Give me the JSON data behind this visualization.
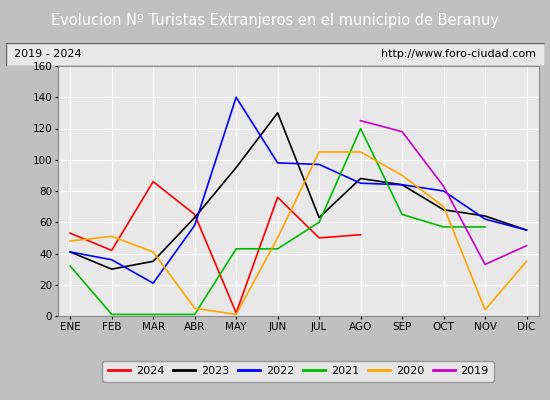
{
  "title": "Evolucion Nº Turistas Extranjeros en el municipio de Beranuy",
  "subtitle_left": "2019 - 2024",
  "subtitle_right": "http://www.foro-ciudad.com",
  "months": [
    "ENE",
    "FEB",
    "MAR",
    "ABR",
    "MAY",
    "JUN",
    "JUL",
    "AGO",
    "SEP",
    "OCT",
    "NOV",
    "DIC"
  ],
  "ylim": [
    0,
    160
  ],
  "yticks": [
    0,
    20,
    40,
    60,
    80,
    100,
    120,
    140,
    160
  ],
  "series": {
    "2024": {
      "color": "#ff0000",
      "values": [
        53,
        42,
        86,
        65,
        2,
        76,
        50,
        52,
        null,
        null,
        null,
        null
      ]
    },
    "2023": {
      "color": "#000000",
      "values": [
        41,
        30,
        35,
        63,
        95,
        130,
        63,
        88,
        84,
        68,
        64,
        55
      ]
    },
    "2022": {
      "color": "#0000ff",
      "values": [
        41,
        36,
        21,
        58,
        140,
        98,
        97,
        85,
        84,
        80,
        62,
        55
      ]
    },
    "2021": {
      "color": "#00bb00",
      "values": [
        32,
        1,
        1,
        1,
        43,
        43,
        60,
        120,
        65,
        57,
        57,
        null
      ]
    },
    "2020": {
      "color": "#ffa500",
      "values": [
        48,
        51,
        41,
        5,
        1,
        50,
        105,
        105,
        90,
        70,
        4,
        35
      ]
    },
    "2019": {
      "color": "#cc00cc",
      "values": [
        null,
        null,
        null,
        null,
        null,
        null,
        null,
        125,
        118,
        83,
        33,
        45
      ]
    }
  },
  "title_bg": "#4472c4",
  "title_color": "#ffffff",
  "plot_bg": "#e8e8e8",
  "grid_color": "#ffffff",
  "fig_bg": "#c8c8c8",
  "legend_order": [
    "2024",
    "2023",
    "2022",
    "2021",
    "2020",
    "2019"
  ]
}
